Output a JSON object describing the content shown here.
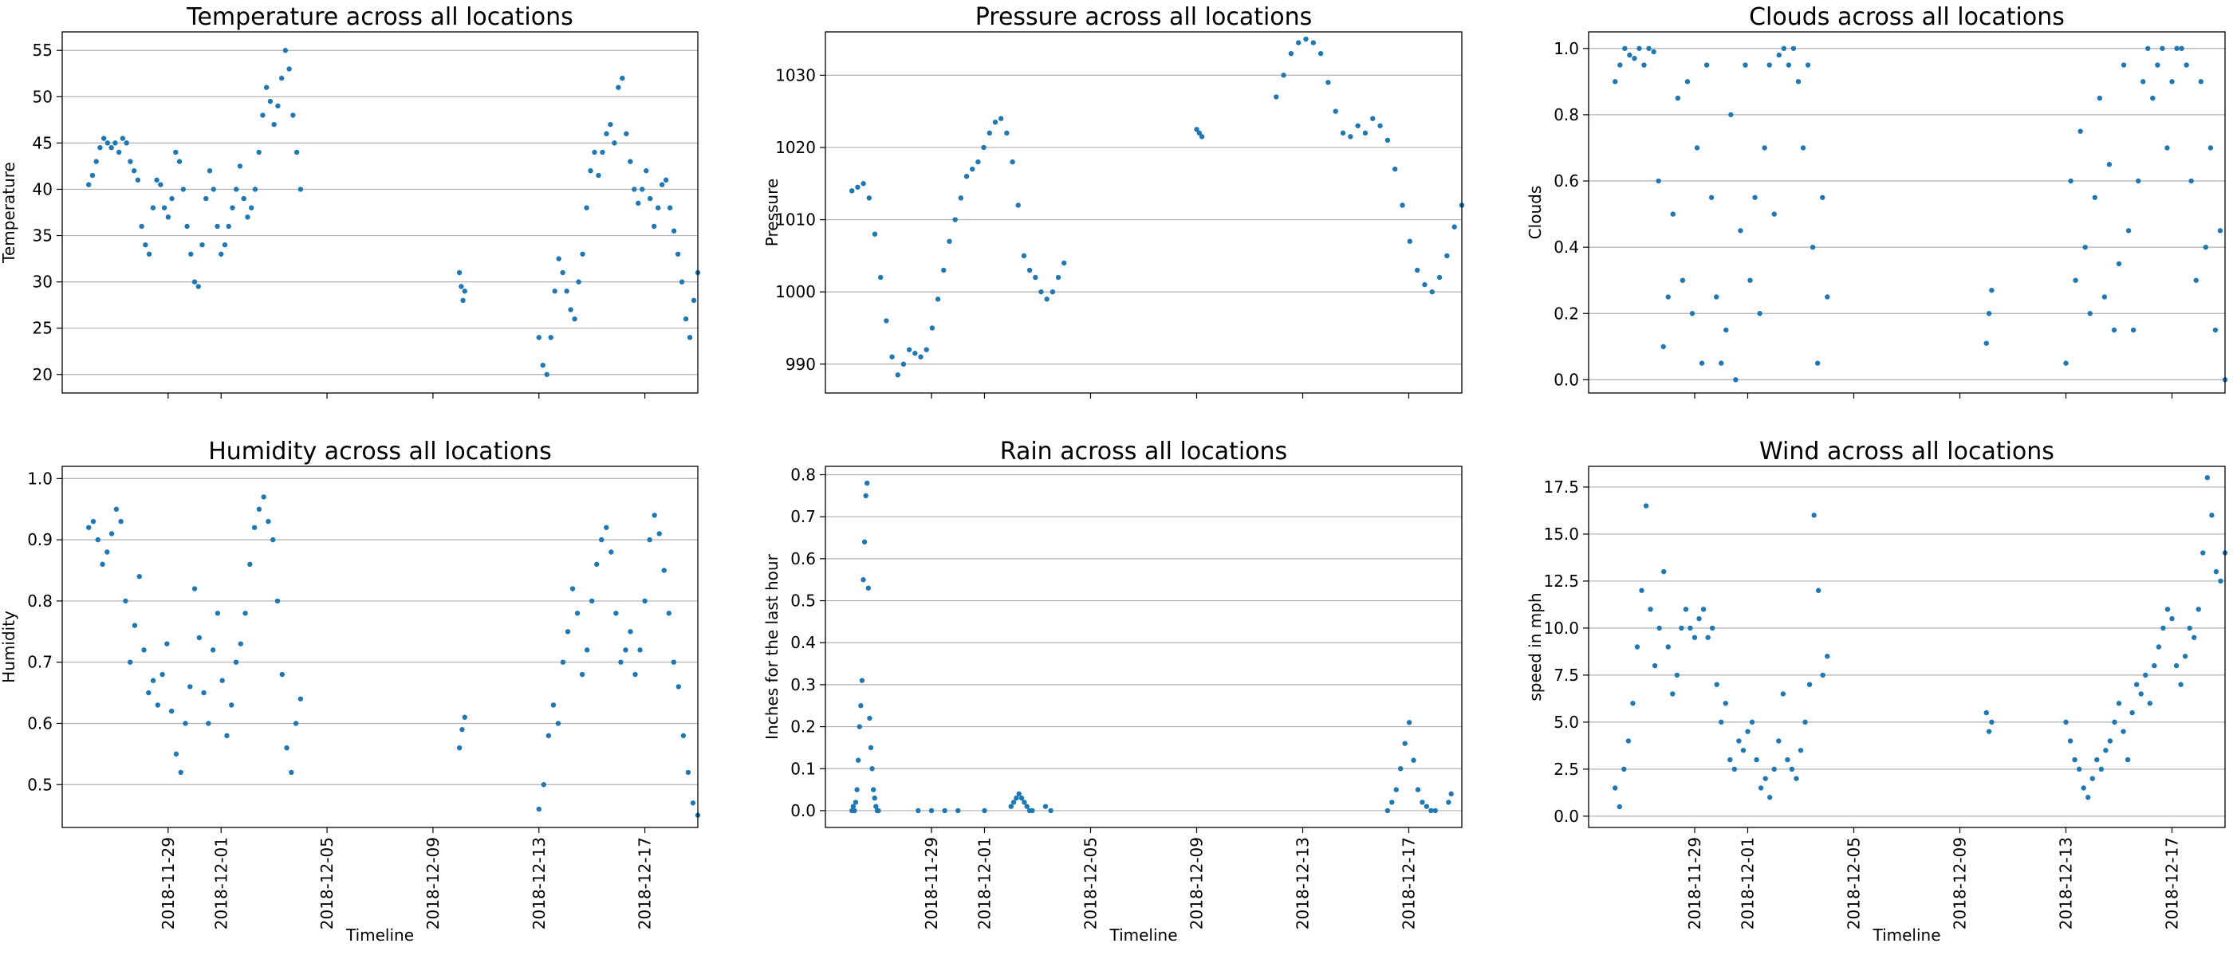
{
  "figure": {
    "xlabel": "Timeline",
    "xtick_labels": [
      "2018-11-29",
      "2018-12-01",
      "2018-12-05",
      "2018-12-09",
      "2018-12-13",
      "2018-12-17"
    ],
    "point_color": "#1f77b4",
    "grid_color": "#b0b0b0"
  },
  "chart_data": [
    {
      "type": "scatter",
      "title": "Temperature across all locations",
      "xlabel": "",
      "ylabel": "Temperature",
      "xlim": [
        "2018-11-25",
        "2018-12-19"
      ],
      "ylim": [
        18,
        57
      ],
      "yticks": [
        20,
        25,
        30,
        35,
        40,
        45,
        50,
        55
      ],
      "ytick_labels": [
        "20",
        "25",
        "30",
        "35",
        "40",
        "45",
        "50",
        "55"
      ],
      "grid": "horizontal",
      "segments": [
        {
          "start": "2018-11-26",
          "end": "2018-12-04",
          "values": [
            40.5,
            41.5,
            43,
            44.5,
            45.5,
            45,
            44.5,
            45,
            44,
            45.5,
            45,
            43,
            42,
            41,
            36,
            34,
            33,
            38,
            41,
            40.5,
            38,
            37,
            39,
            44,
            43,
            40,
            36,
            33,
            30,
            29.5,
            34,
            39,
            42,
            40,
            36,
            33,
            34,
            36,
            38,
            40,
            42.5,
            39,
            37,
            38,
            40,
            44,
            48,
            51,
            49.5,
            47,
            49,
            52,
            55,
            53,
            48,
            44,
            40
          ]
        },
        {
          "start": "2018-12-10",
          "end": "2018-12-10.2",
          "values": [
            31,
            29.5,
            28,
            29
          ]
        },
        {
          "start": "2018-12-13",
          "end": "2018-12-19",
          "values": [
            24,
            21,
            20,
            24,
            29,
            32.5,
            31,
            29,
            27,
            26,
            30,
            33,
            38,
            42,
            44,
            41.5,
            44,
            46,
            47,
            45,
            51,
            52,
            46,
            43,
            40,
            38.5,
            40,
            42,
            39,
            36,
            38,
            40.5,
            41,
            38,
            35.5,
            33,
            30,
            26,
            24,
            28,
            31
          ]
        }
      ]
    },
    {
      "type": "scatter",
      "title": "Pressure across all locations",
      "xlabel": "",
      "ylabel": "Pressure",
      "xlim": [
        "2018-11-25",
        "2018-12-19"
      ],
      "ylim": [
        986,
        1036
      ],
      "yticks": [
        990,
        1000,
        1010,
        1020,
        1030
      ],
      "ytick_labels": [
        "990",
        "1000",
        "1010",
        "1020",
        "1030"
      ],
      "grid": "horizontal",
      "segments": [
        {
          "start": "2018-11-26",
          "end": "2018-12-04",
          "values": [
            1014,
            1014.5,
            1015,
            1013,
            1008,
            1002,
            996,
            991,
            988.5,
            990,
            992,
            991.5,
            991,
            992,
            995,
            999,
            1003,
            1007,
            1010,
            1013,
            1016,
            1017,
            1018,
            1020,
            1022,
            1023.5,
            1024,
            1022,
            1018,
            1012,
            1005,
            1003,
            1002,
            1000,
            999,
            1000,
            1002,
            1004
          ]
        },
        {
          "start": "2018-12-09",
          "end": "2018-12-09.2",
          "values": [
            1022.5,
            1022,
            1021.5
          ]
        },
        {
          "start": "2018-12-12",
          "end": "2018-12-19",
          "values": [
            1027,
            1030,
            1033,
            1034.5,
            1035,
            1034.5,
            1033,
            1029,
            1025,
            1022,
            1021.5,
            1023,
            1022,
            1024,
            1023,
            1021,
            1017,
            1012,
            1007,
            1003,
            1001,
            1000,
            1002,
            1005,
            1009,
            1012
          ]
        }
      ]
    },
    {
      "type": "scatter",
      "title": "Clouds across all locations",
      "xlabel": "",
      "ylabel": "Clouds",
      "xlim": [
        "2018-11-25",
        "2018-12-19"
      ],
      "ylim": [
        -0.04,
        1.05
      ],
      "yticks": [
        0.0,
        0.2,
        0.4,
        0.6,
        0.8,
        1.0
      ],
      "ytick_labels": [
        "0.0",
        "0.2",
        "0.4",
        "0.6",
        "0.8",
        "1.0"
      ],
      "grid": "horizontal",
      "segments": [
        {
          "start": "2018-11-26",
          "end": "2018-12-04",
          "values": [
            0.9,
            0.95,
            1.0,
            0.98,
            0.97,
            1.0,
            0.95,
            1.0,
            0.99,
            0.6,
            0.1,
            0.25,
            0.5,
            0.85,
            0.3,
            0.9,
            0.2,
            0.7,
            0.05,
            0.95,
            0.55,
            0.25,
            0.05,
            0.15,
            0.8,
            0.0,
            0.45,
            0.95,
            0.3,
            0.55,
            0.2,
            0.7,
            0.95,
            0.5,
            0.98,
            1.0,
            0.95,
            1.0,
            0.9,
            0.7,
            0.95,
            0.4,
            0.05,
            0.55,
            0.25
          ]
        },
        {
          "start": "2018-12-10",
          "end": "2018-12-10.2",
          "values": [
            0.11,
            0.2,
            0.27
          ]
        },
        {
          "start": "2018-12-13",
          "end": "2018-12-19",
          "values": [
            0.05,
            0.6,
            0.3,
            0.75,
            0.4,
            0.2,
            0.55,
            0.85,
            0.25,
            0.65,
            0.15,
            0.35,
            0.95,
            0.45,
            0.15,
            0.6,
            0.9,
            1.0,
            0.85,
            0.95,
            1.0,
            0.7,
            0.9,
            1.0,
            1.0,
            0.95,
            0.6,
            0.3,
            0.9,
            0.4,
            0.7,
            0.15,
            0.45,
            0.0
          ]
        }
      ]
    },
    {
      "type": "scatter",
      "title": "Humidity across all locations",
      "xlabel": "Timeline",
      "ylabel": "Humidity",
      "xlim": [
        "2018-11-25",
        "2018-12-19"
      ],
      "ylim": [
        0.43,
        1.02
      ],
      "yticks": [
        0.5,
        0.6,
        0.7,
        0.8,
        0.9,
        1.0
      ],
      "ytick_labels": [
        "0.5",
        "0.6",
        "0.7",
        "0.8",
        "0.9",
        "1.0"
      ],
      "grid": "horizontal",
      "segments": [
        {
          "start": "2018-11-26",
          "end": "2018-12-04",
          "values": [
            0.92,
            0.93,
            0.9,
            0.86,
            0.88,
            0.91,
            0.95,
            0.93,
            0.8,
            0.7,
            0.76,
            0.84,
            0.72,
            0.65,
            0.67,
            0.63,
            0.68,
            0.73,
            0.62,
            0.55,
            0.52,
            0.6,
            0.66,
            0.82,
            0.74,
            0.65,
            0.6,
            0.72,
            0.78,
            0.67,
            0.58,
            0.63,
            0.7,
            0.73,
            0.78,
            0.86,
            0.92,
            0.95,
            0.97,
            0.93,
            0.9,
            0.8,
            0.68,
            0.56,
            0.52,
            0.6,
            0.64
          ]
        },
        {
          "start": "2018-12-10",
          "end": "2018-12-10.2",
          "values": [
            0.56,
            0.59,
            0.61
          ]
        },
        {
          "start": "2018-12-13",
          "end": "2018-12-19",
          "values": [
            0.46,
            0.5,
            0.58,
            0.63,
            0.6,
            0.7,
            0.75,
            0.82,
            0.78,
            0.68,
            0.72,
            0.8,
            0.86,
            0.9,
            0.92,
            0.88,
            0.78,
            0.7,
            0.72,
            0.75,
            0.68,
            0.72,
            0.8,
            0.9,
            0.94,
            0.91,
            0.85,
            0.78,
            0.7,
            0.66,
            0.58,
            0.52,
            0.47,
            0.45
          ]
        }
      ]
    },
    {
      "type": "scatter",
      "title": "Rain across all locations",
      "xlabel": "Timeline",
      "ylabel": "Inches for the last hour",
      "xlim": [
        "2018-11-25",
        "2018-12-19"
      ],
      "ylim": [
        -0.04,
        0.82
      ],
      "yticks": [
        0.0,
        0.1,
        0.2,
        0.3,
        0.4,
        0.5,
        0.6,
        0.7,
        0.8
      ],
      "ytick_labels": [
        "0.0",
        "0.1",
        "0.2",
        "0.3",
        "0.4",
        "0.5",
        "0.6",
        "0.7",
        "0.8"
      ],
      "grid": "horizontal",
      "segments": [
        {
          "start": "2018-11-26",
          "end": "2018-11-27",
          "values": [
            0.0,
            0.01,
            0.0,
            0.02,
            0.05,
            0.12,
            0.2,
            0.25,
            0.31,
            0.55,
            0.64,
            0.75,
            0.78,
            0.53,
            0.22,
            0.15,
            0.1,
            0.05,
            0.03,
            0.01,
            0.0,
            0.0
          ]
        },
        {
          "start": "2018-11-28.5",
          "end": "2018-11-30",
          "values": [
            0.0,
            0.0,
            0.0,
            0.0
          ]
        },
        {
          "start": "2018-12-01",
          "end": "2018-12-01.2",
          "values": [
            0.0
          ]
        },
        {
          "start": "2018-12-02",
          "end": "2018-12-02.8",
          "values": [
            0.01,
            0.02,
            0.03,
            0.04,
            0.03,
            0.02,
            0.01,
            0.0,
            0.0
          ]
        },
        {
          "start": "2018-12-03.3",
          "end": "2018-12-03.5",
          "values": [
            0.01,
            0.0
          ]
        },
        {
          "start": "2018-12-16.2",
          "end": "2018-12-18",
          "values": [
            0.0,
            0.02,
            0.05,
            0.1,
            0.16,
            0.21,
            0.12,
            0.05,
            0.02,
            0.01,
            0.0,
            0.0
          ]
        },
        {
          "start": "2018-12-18.5",
          "end": "2018-12-18.6",
          "values": [
            0.02,
            0.04
          ]
        }
      ]
    },
    {
      "type": "scatter",
      "title": "Wind across all locations",
      "xlabel": "Timeline",
      "ylabel": "speed in mph",
      "xlim": [
        "2018-11-25",
        "2018-12-19"
      ],
      "ylim": [
        -0.6,
        18.6
      ],
      "yticks": [
        0.0,
        2.5,
        5.0,
        7.5,
        10.0,
        12.5,
        15.0,
        17.5
      ],
      "ytick_labels": [
        "0.0",
        "2.5",
        "5.0",
        "7.5",
        "10.0",
        "12.5",
        "15.0",
        "17.5"
      ],
      "grid": "horizontal",
      "segments": [
        {
          "start": "2018-11-26",
          "end": "2018-12-04",
          "values": [
            1.5,
            0.5,
            2.5,
            4,
            6,
            9,
            12,
            16.5,
            11,
            8,
            10,
            13,
            9,
            6.5,
            7.5,
            10,
            11,
            10,
            9.5,
            10.5,
            11,
            9.5,
            10,
            7,
            5,
            6,
            3,
            2.5,
            4,
            3.5,
            4.5,
            5,
            3,
            1.5,
            2,
            1,
            2.5,
            4,
            6.5,
            3,
            2.5,
            2,
            3.5,
            5,
            7,
            16,
            12,
            7.5,
            8.5
          ]
        },
        {
          "start": "2018-12-10",
          "end": "2018-12-10.2",
          "values": [
            5.5,
            4.5,
            5
          ]
        },
        {
          "start": "2018-12-13",
          "end": "2018-12-19",
          "values": [
            5,
            4,
            3,
            2.5,
            1.5,
            1,
            2,
            3,
            2.5,
            3.5,
            4,
            5,
            6,
            4.5,
            3,
            5.5,
            7,
            6.5,
            7.5,
            6,
            8,
            9,
            10,
            11,
            10.5,
            8,
            7,
            8.5,
            10,
            9.5,
            11,
            14,
            18,
            16,
            13,
            12.5,
            14
          ]
        }
      ]
    }
  ]
}
